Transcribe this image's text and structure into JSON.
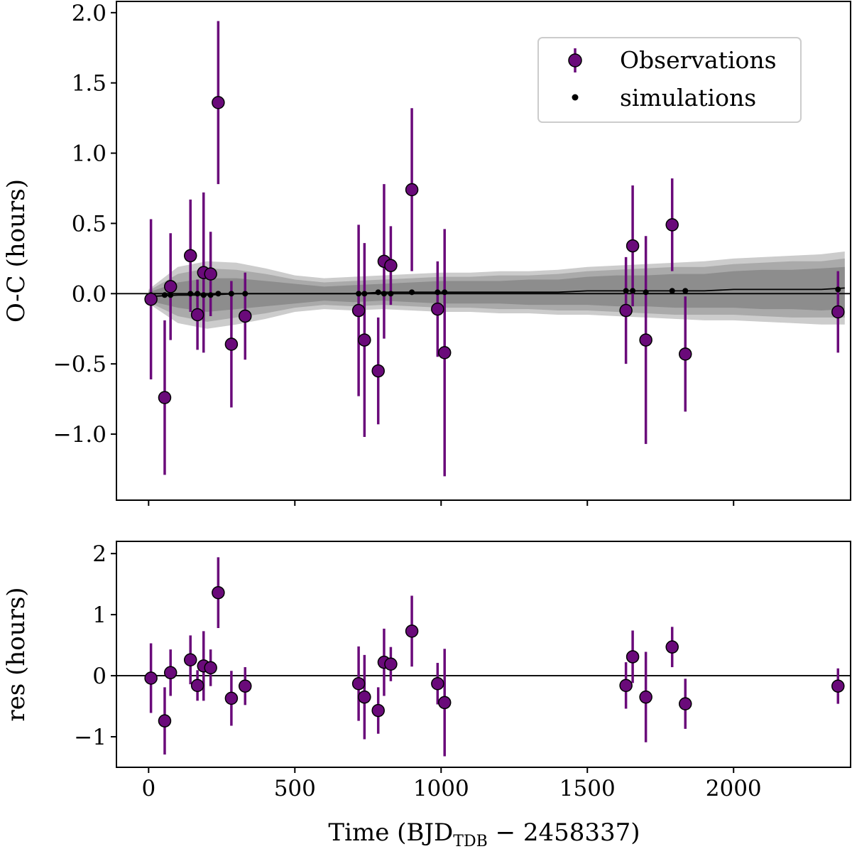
{
  "chart_data": [
    {
      "type": "scatter",
      "panel": "top",
      "ylabel": "O-C (hours)",
      "xlim": [
        -110,
        2400
      ],
      "ylim": [
        -1.47,
        2.08
      ],
      "yticks": [
        -1.0,
        -0.5,
        0.0,
        0.5,
        1.0,
        1.5,
        2.0
      ],
      "ytick_labels": [
        "−1.0",
        "−0.5",
        "0.0",
        "0.5",
        "1.0",
        "1.5",
        "2.0"
      ],
      "xticks": [
        0,
        500,
        1000,
        1500,
        2000
      ],
      "legend": {
        "position": "top-right",
        "entries": [
          {
            "label": "Observations",
            "color": "#6a0a7a",
            "marker": "circle-errorbar"
          },
          {
            "label": "simulations",
            "color": "#000000",
            "marker": "dot"
          }
        ]
      },
      "series": [
        {
          "name": "Observations",
          "color": "#6a0a7a",
          "x": [
            8,
            55,
            75,
            143,
            167,
            188,
            212,
            238,
            283,
            330,
            718,
            738,
            785,
            805,
            828,
            900,
            988,
            1012,
            1632,
            1655,
            1700,
            1790,
            1835,
            2357
          ],
          "y": [
            -0.04,
            -0.74,
            0.05,
            0.27,
            -0.15,
            0.15,
            0.14,
            1.36,
            -0.36,
            -0.16,
            -0.12,
            -0.33,
            -0.55,
            0.23,
            0.2,
            0.74,
            -0.11,
            -0.42,
            -0.12,
            0.34,
            -0.33,
            0.49,
            -0.43,
            -0.13
          ],
          "yerr": [
            0.57,
            0.55,
            0.38,
            0.4,
            0.25,
            0.57,
            0.3,
            0.58,
            0.45,
            0.31,
            0.61,
            0.69,
            0.38,
            0.55,
            0.28,
            0.58,
            0.34,
            0.88,
            0.38,
            0.43,
            0.74,
            0.33,
            0.41,
            0.29
          ]
        },
        {
          "name": "simulations",
          "color": "#000000",
          "x": [
            8,
            55,
            75,
            143,
            167,
            188,
            212,
            238,
            283,
            330,
            718,
            738,
            785,
            805,
            828,
            900,
            988,
            1012,
            1632,
            1655,
            1700,
            1790,
            1835,
            2357
          ],
          "y": [
            -0.01,
            -0.01,
            -0.01,
            0.0,
            0.0,
            -0.01,
            -0.01,
            0.0,
            0.0,
            0.0,
            0.0,
            0.0,
            0.01,
            0.0,
            0.0,
            0.01,
            0.01,
            0.01,
            0.02,
            0.02,
            0.01,
            0.02,
            0.02,
            0.03
          ]
        }
      ],
      "model_line": {
        "color": "#000000",
        "x": [
          0,
          100,
          200,
          300,
          400,
          500,
          600,
          700,
          800,
          900,
          1000,
          1100,
          1200,
          1300,
          1400,
          1500,
          1600,
          1700,
          1800,
          1900,
          2000,
          2100,
          2200,
          2300,
          2380
        ],
        "y": [
          -0.02,
          -0.01,
          -0.01,
          0.0,
          0.0,
          0.0,
          0.0,
          0.0,
          0.01,
          0.01,
          0.01,
          0.01,
          0.01,
          0.01,
          0.01,
          0.02,
          0.02,
          0.02,
          0.02,
          0.02,
          0.03,
          0.03,
          0.03,
          0.03,
          0.04
        ]
      },
      "confidence_bands": {
        "x": [
          0,
          100,
          200,
          300,
          400,
          500,
          600,
          700,
          800,
          900,
          1000,
          1100,
          1200,
          1300,
          1400,
          1500,
          1600,
          1700,
          1800,
          1900,
          2000,
          2100,
          2200,
          2300,
          2380
        ],
        "center": [
          -0.02,
          -0.01,
          -0.01,
          0.0,
          0.0,
          0.0,
          0.0,
          0.0,
          0.01,
          0.01,
          0.01,
          0.01,
          0.01,
          0.01,
          0.01,
          0.02,
          0.02,
          0.02,
          0.02,
          0.02,
          0.03,
          0.03,
          0.03,
          0.03,
          0.04
        ],
        "half_widths": [
          {
            "color": "#cccccc",
            "values": [
              0.05,
              0.2,
              0.24,
              0.22,
              0.18,
              0.13,
              0.11,
              0.12,
              0.12,
              0.13,
              0.14,
              0.14,
              0.15,
              0.15,
              0.16,
              0.17,
              0.18,
              0.19,
              0.2,
              0.21,
              0.22,
              0.23,
              0.24,
              0.25,
              0.26
            ]
          },
          {
            "color": "#aaaaaa",
            "values": [
              0.04,
              0.15,
              0.19,
              0.17,
              0.14,
              0.1,
              0.08,
              0.09,
              0.09,
              0.1,
              0.11,
              0.11,
              0.12,
              0.12,
              0.13,
              0.14,
              0.15,
              0.16,
              0.17,
              0.17,
              0.18,
              0.19,
              0.2,
              0.2,
              0.21
            ]
          },
          {
            "color": "#8d8d8d",
            "values": [
              0.03,
              0.09,
              0.12,
              0.11,
              0.09,
              0.07,
              0.05,
              0.06,
              0.06,
              0.07,
              0.08,
              0.08,
              0.08,
              0.09,
              0.09,
              0.1,
              0.11,
              0.11,
              0.12,
              0.12,
              0.13,
              0.14,
              0.14,
              0.15,
              0.15
            ]
          }
        ]
      }
    },
    {
      "type": "scatter",
      "panel": "bottom",
      "xlabel_main": "Time (BJD",
      "xlabel_sub": "TDB",
      "xlabel_tail": " − 2458337)",
      "ylabel": "res (hours)",
      "xlim": [
        -110,
        2400
      ],
      "ylim": [
        -1.5,
        2.2
      ],
      "yticks": [
        -1,
        0,
        1,
        2
      ],
      "ytick_labels": [
        "−1",
        "0",
        "1",
        "2"
      ],
      "xticks": [
        0,
        500,
        1000,
        1500,
        2000
      ],
      "xtick_labels": [
        "0",
        "500",
        "1000",
        "1500",
        "2000"
      ],
      "series": [
        {
          "name": "Observations",
          "color": "#6a0a7a",
          "x": [
            8,
            55,
            75,
            143,
            167,
            188,
            212,
            238,
            283,
            330,
            718,
            738,
            785,
            805,
            828,
            900,
            988,
            1012,
            1632,
            1655,
            1700,
            1790,
            1835,
            2357
          ],
          "y": [
            -0.04,
            -0.74,
            0.05,
            0.26,
            -0.16,
            0.16,
            0.13,
            1.36,
            -0.37,
            -0.17,
            -0.13,
            -0.35,
            -0.57,
            0.22,
            0.19,
            0.73,
            -0.13,
            -0.44,
            -0.16,
            0.31,
            -0.35,
            0.47,
            -0.46,
            -0.17
          ],
          "yerr": [
            0.57,
            0.55,
            0.38,
            0.4,
            0.25,
            0.57,
            0.3,
            0.58,
            0.45,
            0.31,
            0.61,
            0.69,
            0.38,
            0.55,
            0.28,
            0.58,
            0.34,
            0.88,
            0.38,
            0.43,
            0.74,
            0.33,
            0.41,
            0.29
          ]
        }
      ]
    }
  ]
}
